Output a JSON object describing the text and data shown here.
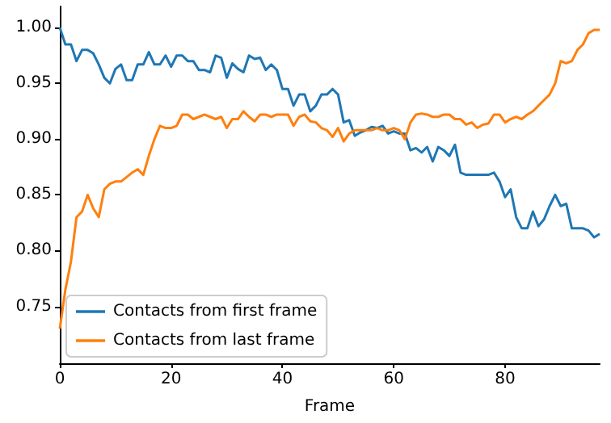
{
  "chart_data": {
    "type": "line",
    "xlabel": "Frame",
    "x": [
      0,
      1,
      2,
      3,
      4,
      5,
      6,
      7,
      8,
      9,
      10,
      11,
      12,
      13,
      14,
      15,
      16,
      17,
      18,
      19,
      20,
      21,
      22,
      23,
      24,
      25,
      26,
      27,
      28,
      29,
      30,
      31,
      32,
      33,
      34,
      35,
      36,
      37,
      38,
      39,
      40,
      41,
      42,
      43,
      44,
      45,
      46,
      47,
      48,
      49,
      50,
      51,
      52,
      53,
      54,
      55,
      56,
      57,
      58,
      59,
      60,
      61,
      62,
      63,
      64,
      65,
      66,
      67,
      68,
      69,
      70,
      71,
      72,
      73,
      74,
      75,
      76,
      77,
      78,
      79,
      80,
      81,
      82,
      83,
      84,
      85,
      86,
      87,
      88,
      89,
      90,
      91,
      92,
      93,
      94,
      95,
      96,
      97
    ],
    "series": [
      {
        "name": "Contacts from first frame",
        "color": "#1f77b4",
        "values": [
          1.0,
          0.985,
          0.985,
          0.97,
          0.98,
          0.98,
          0.977,
          0.967,
          0.955,
          0.95,
          0.963,
          0.967,
          0.953,
          0.953,
          0.967,
          0.967,
          0.978,
          0.967,
          0.967,
          0.975,
          0.965,
          0.975,
          0.975,
          0.97,
          0.97,
          0.962,
          0.962,
          0.96,
          0.975,
          0.973,
          0.955,
          0.968,
          0.963,
          0.96,
          0.975,
          0.972,
          0.973,
          0.962,
          0.967,
          0.962,
          0.945,
          0.945,
          0.93,
          0.94,
          0.94,
          0.925,
          0.93,
          0.94,
          0.94,
          0.945,
          0.94,
          0.915,
          0.917,
          0.903,
          0.906,
          0.908,
          0.911,
          0.91,
          0.912,
          0.905,
          0.907,
          0.905,
          0.905,
          0.89,
          0.892,
          0.888,
          0.893,
          0.88,
          0.893,
          0.89,
          0.885,
          0.895,
          0.87,
          0.868,
          0.868,
          0.868,
          0.868,
          0.868,
          0.87,
          0.862,
          0.848,
          0.855,
          0.83,
          0.82,
          0.82,
          0.835,
          0.822,
          0.828,
          0.84,
          0.85,
          0.84,
          0.842,
          0.82,
          0.82,
          0.82,
          0.818,
          0.812,
          0.815
        ]
      },
      {
        "name": "Contacts from last frame",
        "color": "#ff7f0e",
        "values": [
          0.73,
          0.765,
          0.79,
          0.83,
          0.835,
          0.85,
          0.838,
          0.83,
          0.855,
          0.86,
          0.862,
          0.862,
          0.866,
          0.87,
          0.873,
          0.868,
          0.885,
          0.9,
          0.912,
          0.91,
          0.91,
          0.912,
          0.922,
          0.922,
          0.918,
          0.92,
          0.922,
          0.92,
          0.918,
          0.92,
          0.91,
          0.918,
          0.918,
          0.925,
          0.92,
          0.916,
          0.922,
          0.922,
          0.92,
          0.922,
          0.922,
          0.922,
          0.912,
          0.92,
          0.922,
          0.916,
          0.915,
          0.91,
          0.908,
          0.902,
          0.91,
          0.898,
          0.905,
          0.908,
          0.908,
          0.908,
          0.908,
          0.91,
          0.908,
          0.908,
          0.91,
          0.908,
          0.9,
          0.915,
          0.922,
          0.923,
          0.922,
          0.92,
          0.92,
          0.922,
          0.922,
          0.918,
          0.918,
          0.913,
          0.915,
          0.91,
          0.913,
          0.914,
          0.922,
          0.922,
          0.915,
          0.918,
          0.92,
          0.918,
          0.922,
          0.925,
          0.93,
          0.935,
          0.94,
          0.95,
          0.97,
          0.968,
          0.97,
          0.98,
          0.985,
          0.995,
          0.998,
          0.998
        ]
      }
    ],
    "xlim": [
      0,
      97
    ],
    "xticks": [
      0,
      20,
      40,
      60,
      80
    ],
    "ylim": [
      0.699,
      1.019
    ],
    "yticks": [
      {
        "value": 0.75,
        "label": "0.75"
      },
      {
        "value": 0.8,
        "label": "0.80"
      },
      {
        "value": 0.85,
        "label": "0.85"
      },
      {
        "value": 0.9,
        "label": "0.90"
      },
      {
        "value": 0.95,
        "label": "0.95"
      },
      {
        "value": 1.0,
        "label": "1.00"
      }
    ],
    "legend": "bottom left",
    "marker": "none",
    "line_style": "solid"
  }
}
